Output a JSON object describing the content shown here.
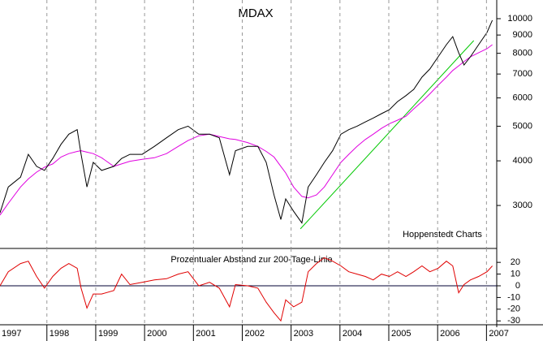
{
  "chart_data": [
    {
      "type": "line",
      "title": "MDAX",
      "annotation": "Hoppenstedt Charts",
      "yscale": "log",
      "xgrid": true,
      "xlim": [
        1997.04,
        2007.21
      ],
      "ylim": [
        2286,
        11279
      ],
      "yticks": [
        3000,
        4000,
        5000,
        6000,
        7000,
        8000,
        9000,
        10000
      ],
      "x": [
        1997.04,
        1997.21,
        1997.46,
        1997.62,
        1997.79,
        1997.95,
        1998.12,
        1998.29,
        1998.45,
        1998.62,
        1998.7,
        1998.82,
        1998.95,
        1999.12,
        1999.37,
        1999.53,
        1999.7,
        1999.95,
        2000.2,
        2000.45,
        2000.69,
        2000.89,
        2001.11,
        2001.33,
        2001.53,
        2001.74,
        2001.86,
        2002.11,
        2002.32,
        2002.49,
        2002.65,
        2002.79,
        2002.89,
        2003.05,
        2003.22,
        2003.35,
        2003.52,
        2003.68,
        2003.85,
        2004.02,
        2004.18,
        2004.35,
        2004.52,
        2004.68,
        2004.85,
        2005.01,
        2005.18,
        2005.35,
        2005.51,
        2005.68,
        2005.84,
        2006.01,
        2006.18,
        2006.31,
        2006.43,
        2006.54,
        2006.67,
        2006.84,
        2007.01,
        2007.12
      ],
      "series": [
        {
          "color": "#000000",
          "values": [
            2860,
            3380,
            3600,
            4170,
            3860,
            3760,
            4060,
            4450,
            4750,
            4890,
            4170,
            3380,
            3960,
            3760,
            3860,
            4060,
            4170,
            4170,
            4390,
            4640,
            4890,
            5000,
            4750,
            4750,
            4640,
            3660,
            4270,
            4390,
            4390,
            3960,
            3210,
            2740,
            3130,
            2890,
            2680,
            3380,
            3660,
            3960,
            4270,
            4750,
            4890,
            5000,
            5140,
            5270,
            5420,
            5560,
            5860,
            6090,
            6340,
            6860,
            7230,
            7820,
            8460,
            8910,
            8030,
            7420,
            7820,
            8460,
            9150,
            9900
          ]
        },
        {
          "color": "#e000e0",
          "values": [
            2820,
            3040,
            3380,
            3560,
            3720,
            3840,
            3920,
            4100,
            4190,
            4250,
            4270,
            4230,
            4190,
            4080,
            3860,
            3920,
            3990,
            4040,
            4080,
            4190,
            4390,
            4560,
            4700,
            4750,
            4680,
            4610,
            4590,
            4500,
            4390,
            4250,
            4100,
            3860,
            3700,
            3380,
            3180,
            3150,
            3210,
            3380,
            3660,
            3960,
            4170,
            4390,
            4590,
            4750,
            4930,
            5080,
            5200,
            5330,
            5590,
            5860,
            6160,
            6510,
            6860,
            7160,
            7380,
            7580,
            7820,
            8030,
            8240,
            8460
          ]
        }
      ],
      "trendline": {
        "color": "#00c800",
        "x": [
          2003.19,
          2006.74
        ],
        "values": [
          2580,
          8680
        ]
      }
    },
    {
      "type": "line",
      "title": "Prozentualer Abstand zur 200-Tage-Linie",
      "xgrid": true,
      "xlim": [
        1997.04,
        2007.21
      ],
      "ylim": [
        -33.3,
        31.9
      ],
      "yticks": [
        -30,
        -20,
        -10,
        0,
        10,
        20
      ],
      "xticks": [
        1997,
        1998,
        1999,
        2000,
        2001,
        2002,
        2003,
        2004,
        2005,
        2006,
        2007
      ],
      "x": [
        1997.04,
        1997.21,
        1997.46,
        1997.62,
        1997.79,
        1997.95,
        1998.12,
        1998.29,
        1998.45,
        1998.62,
        1998.7,
        1998.82,
        1998.95,
        1999.12,
        1999.37,
        1999.53,
        1999.7,
        1999.95,
        2000.2,
        2000.45,
        2000.69,
        2000.89,
        2001.11,
        2001.33,
        2001.53,
        2001.74,
        2001.86,
        2002.11,
        2002.32,
        2002.49,
        2002.65,
        2002.79,
        2002.89,
        2003.05,
        2003.22,
        2003.35,
        2003.52,
        2003.68,
        2003.85,
        2004.02,
        2004.18,
        2004.35,
        2004.52,
        2004.68,
        2004.85,
        2005.01,
        2005.18,
        2005.35,
        2005.51,
        2005.68,
        2005.84,
        2006.01,
        2006.18,
        2006.31,
        2006.43,
        2006.54,
        2006.67,
        2006.84,
        2007.01,
        2007.12
      ],
      "series": [
        {
          "color": "#e00000",
          "values": [
            0,
            12,
            19,
            21,
            8,
            -2,
            8,
            15,
            19,
            15,
            -2,
            -19,
            -7,
            -7,
            -4,
            10,
            1,
            3,
            5,
            6,
            10,
            12,
            0,
            3,
            -2,
            -18,
            1,
            0,
            -2,
            -14,
            -23,
            -30,
            -12,
            -18,
            -14,
            12,
            19,
            24,
            21,
            17,
            12,
            10,
            8,
            5,
            10,
            8,
            12,
            8,
            12,
            17,
            12,
            15,
            21,
            17,
            -6,
            1,
            5,
            8,
            12,
            17
          ]
        }
      ]
    }
  ]
}
